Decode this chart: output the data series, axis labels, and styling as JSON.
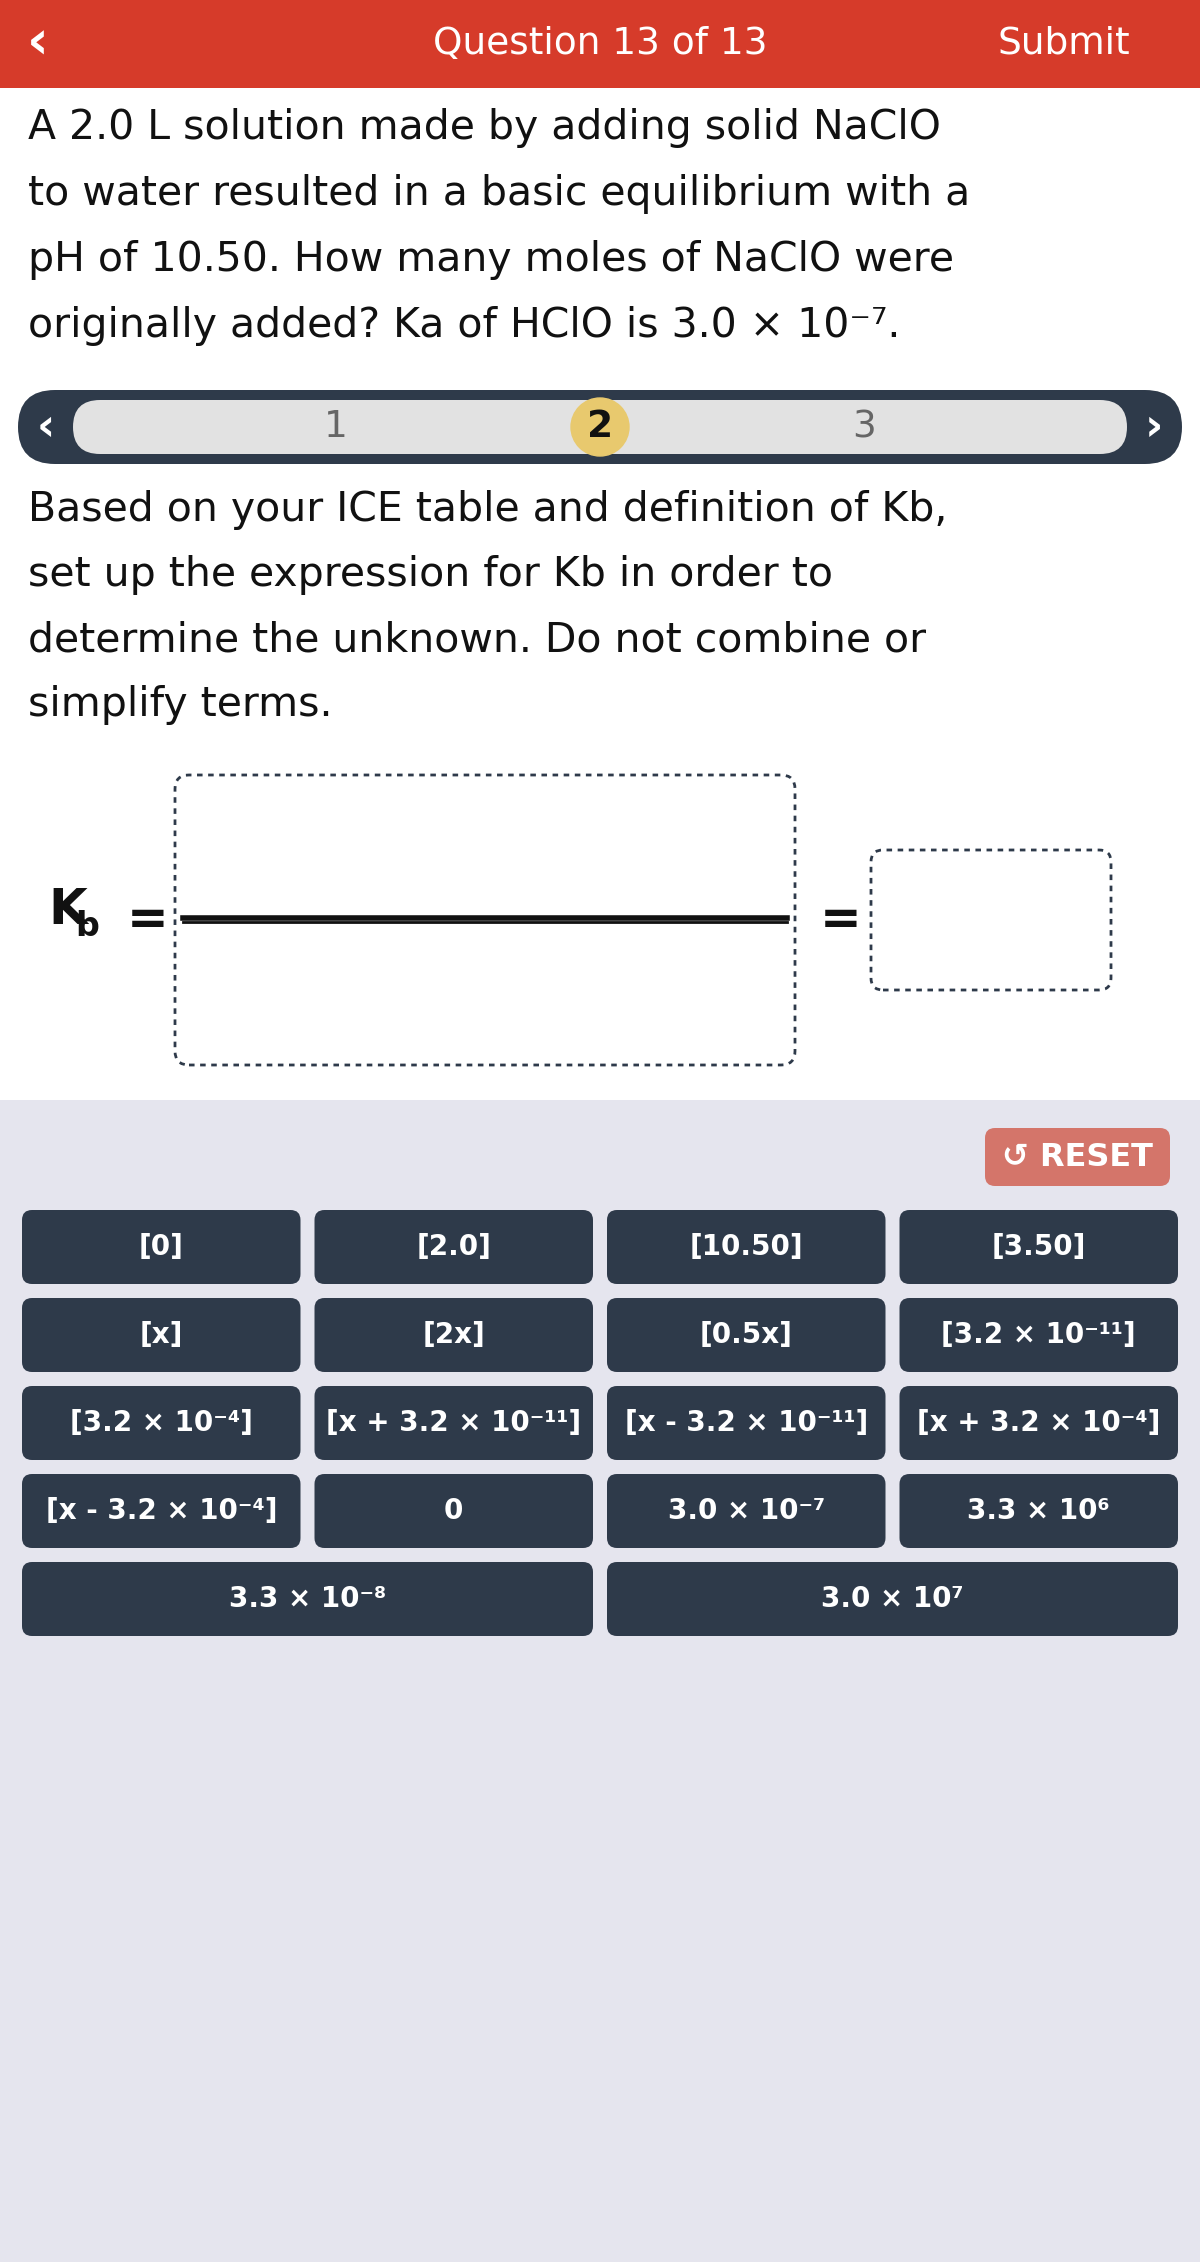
{
  "bg_color": "#ffffff",
  "header_color": "#d63b2a",
  "header_text": "Question 13 of 13",
  "header_submit": "Submit",
  "question_text_lines": [
    "A 2.0 L solution made by adding solid NaClO",
    "to water resulted in a basic equilibrium with a",
    "pH of 10.50. How many moles of NaClO were",
    "originally added? Ka of HClO is 3.0 × 10⁻⁷."
  ],
  "step_bar_bg": "#2e3a4a",
  "step_bar_inner_bg": "#e2e2e2",
  "step_active": 2,
  "step_active_color": "#e8c96e",
  "step_labels": [
    "1",
    "2",
    "3"
  ],
  "instruction_lines": [
    "Based on your ICE table and definition of Kb,",
    "set up the expression for Kb in order to",
    "determine the unknown. Do not combine or",
    "simplify terms."
  ],
  "bottom_panel_color": "#e5e5ee",
  "reset_button_color": "#d4756a",
  "reset_text": "↺ RESET",
  "buttons_row1": [
    "[0]",
    "[2.0]",
    "[10.50]",
    "[3.50]"
  ],
  "buttons_row2": [
    "[x]",
    "[2x]",
    "[0.5x]",
    "[3.2 × 10⁻¹¹]"
  ],
  "buttons_row3": [
    "[3.2 × 10⁻⁴]",
    "[x + 3.2 × 10⁻¹¹]",
    "[x - 3.2 × 10⁻¹¹]",
    "[x + 3.2 × 10⁻⁴]"
  ],
  "buttons_row4": [
    "[x - 3.2 × 10⁻⁴]",
    "0",
    "3.0 × 10⁻⁷",
    "3.3 × 10⁶"
  ],
  "buttons_row5": [
    "3.3 × 10⁻⁸",
    "3.0 × 10⁷"
  ],
  "button_color": "#2e3a4a",
  "button_text_color": "#ffffff"
}
